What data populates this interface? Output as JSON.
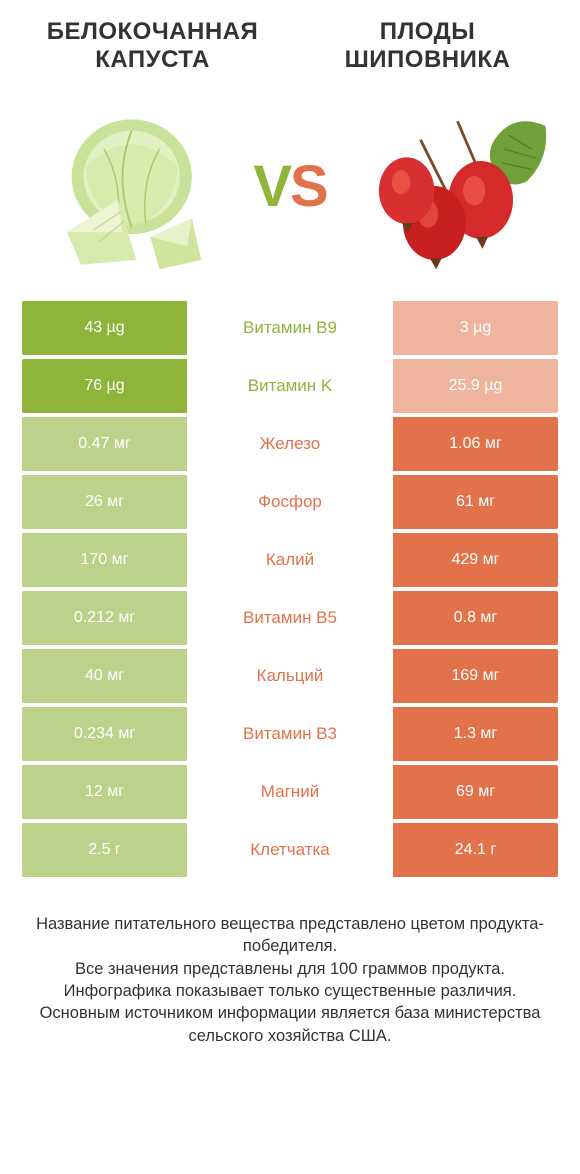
{
  "colors": {
    "green": "#8fb43a",
    "orange": "#e2724a",
    "green_dim": "#bcd189",
    "orange_dim": "#efb49e",
    "text": "#333333",
    "white": "#ffffff"
  },
  "header": {
    "left_title": "БЕЛОКОЧАННАЯ КАПУСТА",
    "right_title": "ПЛОДЫ ШИПОВНИКА",
    "vs_v": "V",
    "vs_s": "S"
  },
  "rows": [
    {
      "label": "Витамин B9",
      "left": "43 µg",
      "right": "3 µg",
      "winner": "left"
    },
    {
      "label": "Витамин K",
      "left": "76 µg",
      "right": "25.9 µg",
      "winner": "left"
    },
    {
      "label": "Железо",
      "left": "0.47 мг",
      "right": "1.06 мг",
      "winner": "right"
    },
    {
      "label": "Фосфор",
      "left": "26 мг",
      "right": "61 мг",
      "winner": "right"
    },
    {
      "label": "Калий",
      "left": "170 мг",
      "right": "429 мг",
      "winner": "right"
    },
    {
      "label": "Витамин B5",
      "left": "0.212 мг",
      "right": "0.8 мг",
      "winner": "right"
    },
    {
      "label": "Кальций",
      "left": "40 мг",
      "right": "169 мг",
      "winner": "right"
    },
    {
      "label": "Витамин B3",
      "left": "0.234 мг",
      "right": "1.3 мг",
      "winner": "right"
    },
    {
      "label": "Магний",
      "left": "12 мг",
      "right": "69 мг",
      "winner": "right"
    },
    {
      "label": "Клетчатка",
      "left": "2.5 г",
      "right": "24.1 г",
      "winner": "right"
    }
  ],
  "footer": {
    "line1": "Название питательного вещества представлено цветом продукта-победителя.",
    "line2": "Все значения представлены для 100 граммов продукта.",
    "line3": "Инфографика показывает только существенные различия.",
    "line4": "Основным источником информации является база министерства сельского хозяйства США."
  }
}
